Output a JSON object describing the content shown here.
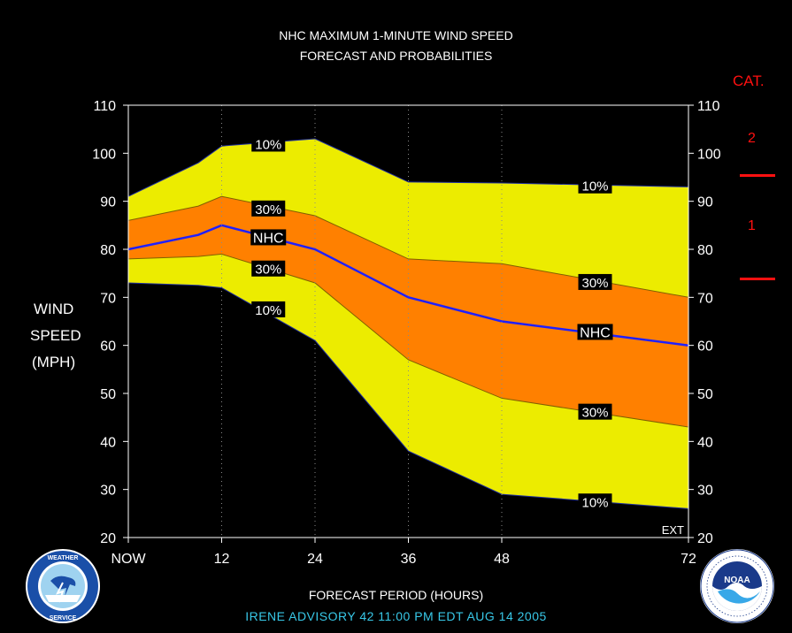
{
  "title_line1": "NHC MAXIMUM 1-MINUTE WIND SPEED",
  "title_line2": "FORECAST AND PROBABILITIES",
  "ylabel": [
    "WIND",
    "SPEED",
    "(MPH)"
  ],
  "xlabel": "FORECAST PERIOD (HOURS)",
  "footer": "IRENE   ADVISORY  42 11:00  PM  EDT  AUG  14  2005",
  "ext_label": "EXT",
  "category_panel": {
    "title": "CAT.",
    "labels": [
      "2",
      "1"
    ]
  },
  "logos": {
    "left": "NATIONAL WEATHER SERVICE",
    "right": "NOAA"
  },
  "chart_data": {
    "type": "area",
    "x_tick_labels": [
      "NOW",
      "12",
      "24",
      "36",
      "48",
      "72"
    ],
    "x_tick_hours": [
      0,
      12,
      24,
      36,
      48,
      72
    ],
    "x": [
      0,
      9,
      12,
      24,
      36,
      48,
      72
    ],
    "ylim": [
      20,
      110
    ],
    "xlim": [
      0,
      72
    ],
    "y_ticks": [
      20,
      30,
      40,
      50,
      60,
      70,
      80,
      90,
      100,
      110
    ],
    "series": [
      {
        "name": "10%",
        "values": [
          91,
          98,
          101.5,
          103,
          94,
          93.8,
          93
        ]
      },
      {
        "name": "30%",
        "values": [
          86,
          89,
          91,
          87,
          78,
          77,
          70
        ]
      },
      {
        "name": "NHC",
        "values": [
          80,
          83,
          85,
          80,
          70,
          65,
          60
        ]
      },
      {
        "name": "30%",
        "values": [
          78,
          78.5,
          79,
          73,
          57,
          49,
          43
        ]
      },
      {
        "name": "10%",
        "values": [
          73,
          72.5,
          72,
          61,
          38,
          29,
          26
        ]
      }
    ],
    "colors": {
      "outer_band": "#ecec00",
      "inner_band": "#ff8000",
      "nhc_line": "#2020ff",
      "background": "#000000",
      "category_lines": "#ff1010"
    },
    "grid": "dotted vertical at forecast hours",
    "band_labels": [
      {
        "text": "10%",
        "x": 18,
        "y": 102
      },
      {
        "text": "30%",
        "x": 18,
        "y": 88.5
      },
      {
        "text": "NHC",
        "x": 18,
        "y": 82.5
      },
      {
        "text": "30%",
        "x": 18,
        "y": 76
      },
      {
        "text": "10%",
        "x": 18,
        "y": 67.5
      },
      {
        "text": "10%",
        "x": 60,
        "y": 93.3
      },
      {
        "text": "30%",
        "x": 60,
        "y": 73.2
      },
      {
        "text": "NHC",
        "x": 60,
        "y": 62.8
      },
      {
        "text": "30%",
        "x": 60,
        "y": 46.2
      },
      {
        "text": "10%",
        "x": 60,
        "y": 27.5
      }
    ]
  }
}
